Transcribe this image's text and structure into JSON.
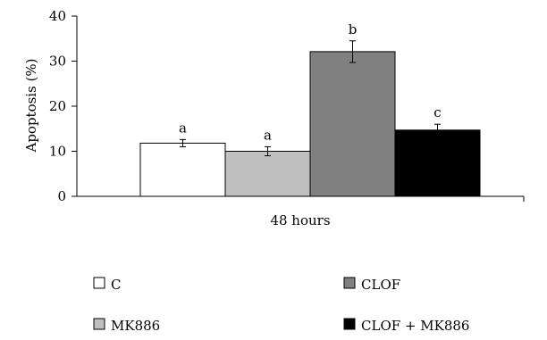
{
  "chart_data": {
    "type": "bar",
    "categories": [
      "48 hours"
    ],
    "series": [
      {
        "name": "C",
        "values": [
          11.8
        ],
        "error": [
          0.8
        ],
        "label": "a",
        "color": "#ffffff"
      },
      {
        "name": "MK886",
        "values": [
          10.0
        ],
        "error": [
          1.0
        ],
        "label": "a",
        "color": "#bfbfbf"
      },
      {
        "name": "CLOF",
        "values": [
          32.1
        ],
        "error": [
          2.4
        ],
        "label": "b",
        "color": "#808080"
      },
      {
        "name": "CLOF + MK886",
        "values": [
          14.7
        ],
        "error": [
          1.3
        ],
        "label": "c",
        "color": "#000000"
      }
    ],
    "ylabel": "Apoptosis (%)",
    "ylim": [
      0,
      40
    ],
    "yticks": [
      0,
      10,
      20,
      30,
      40
    ],
    "grid": false,
    "legend_position": "bottom"
  }
}
